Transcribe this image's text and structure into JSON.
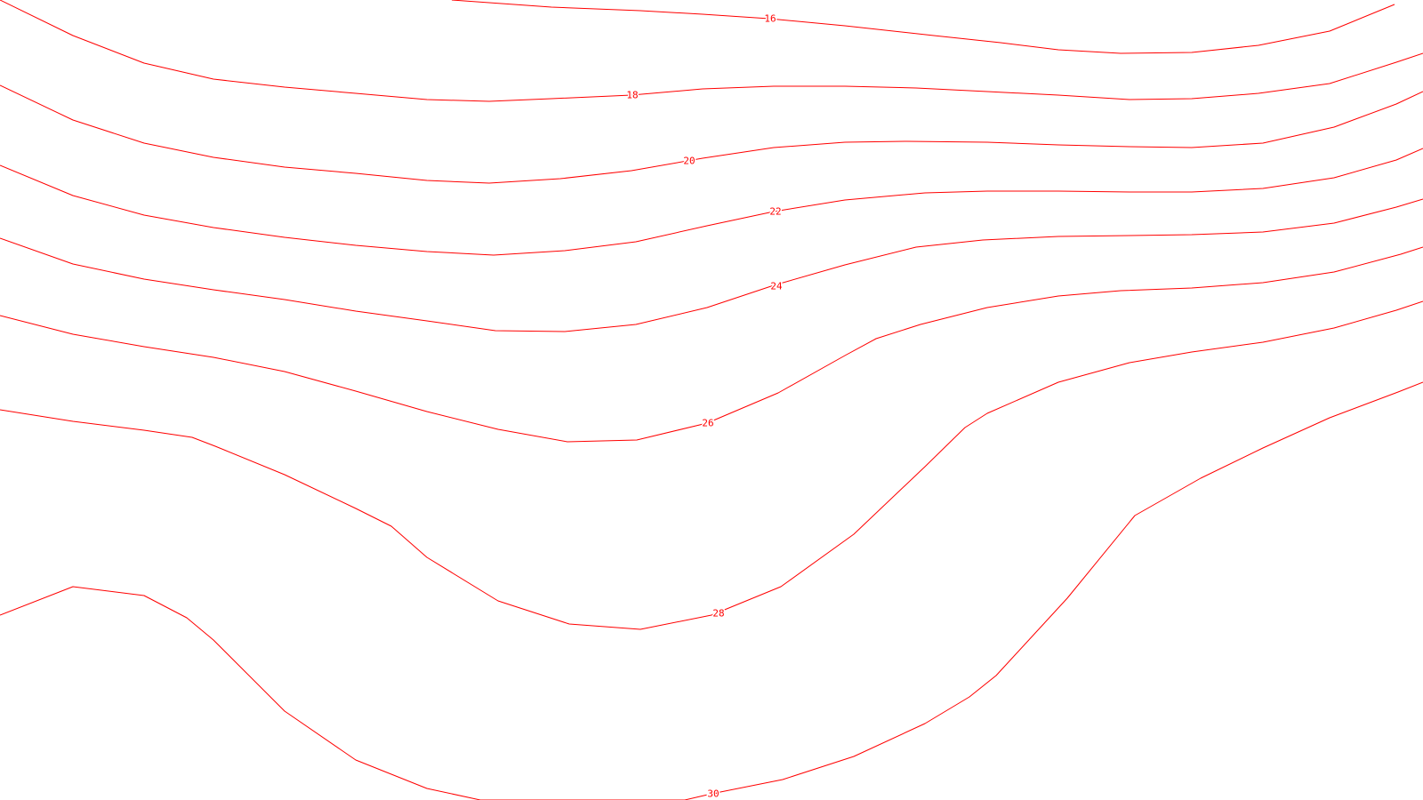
{
  "map": {
    "line_color": "#ff0000",
    "label_halo": "#ffffff",
    "contours": [
      {
        "level": "16",
        "label": "16"
      },
      {
        "level": "18",
        "label": "18"
      },
      {
        "level": "20",
        "label": "20"
      },
      {
        "level": "22",
        "label": "22"
      },
      {
        "level": "24",
        "label": "24"
      },
      {
        "level": "26",
        "label": "26"
      },
      {
        "level": "28",
        "label": "28"
      },
      {
        "level": "30",
        "label": "30"
      }
    ]
  }
}
